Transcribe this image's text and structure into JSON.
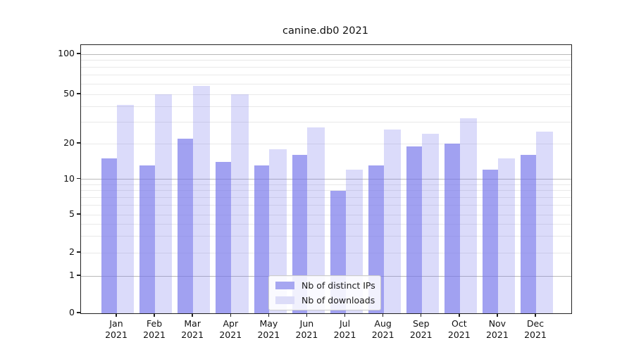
{
  "figure": {
    "title": "canine.db0 2021"
  },
  "chart_data": {
    "type": "bar",
    "title": "canine.db0 2021",
    "categories": [
      "Jan",
      "Feb",
      "Mar",
      "Apr",
      "May",
      "Jun",
      "Jul",
      "Aug",
      "Sep",
      "Oct",
      "Nov",
      "Dec"
    ],
    "x_tick_second_line": "2021",
    "series": [
      {
        "name": "Nb of distinct IPs",
        "color": "#7474eb",
        "alpha": 0.68,
        "swatch_color": "#a6a6f1",
        "values": [
          15,
          13,
          22,
          14,
          13,
          16,
          8,
          13,
          19,
          20,
          12,
          16
        ]
      },
      {
        "name": "Nb of downloads",
        "color": "#7474eb",
        "alpha": 0.26,
        "swatch_color": "#dcdcf8",
        "values": [
          41,
          50,
          58,
          50,
          18,
          27,
          12,
          26,
          24,
          32,
          15,
          25
        ]
      }
    ],
    "y_axis": {
      "scale": "symlog",
      "tick_values": [
        0,
        1,
        2,
        5,
        10,
        20,
        50,
        100
      ],
      "tick_labels": [
        "0",
        "1",
        "2",
        "5",
        "10",
        "20",
        "50",
        "100"
      ],
      "range": [
        0,
        118
      ],
      "grid": true,
      "major_decades": [
        1,
        10,
        100
      ]
    },
    "legend": {
      "position": "lower center",
      "entries": [
        "Nb of distinct IPs",
        "Nb of downloads"
      ]
    }
  }
}
